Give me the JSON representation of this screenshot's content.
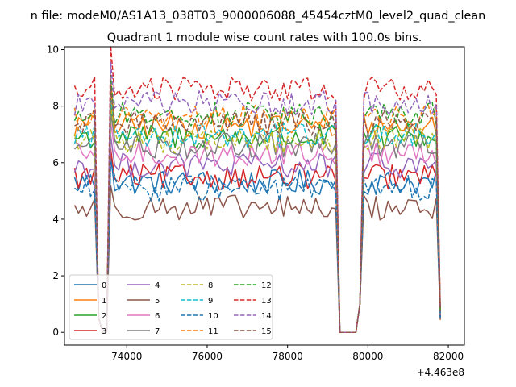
{
  "figure_title": "n file: modeM0/AS1A13_038T03_9000006088_45454cztM0_level2_quad_clean",
  "chart_data": {
    "type": "line",
    "title": "Quadrant 1 module wise count rates with 100.0s bins.",
    "xlabel": "",
    "ylabel": "",
    "x_offset_label": "+4.463e8",
    "xlim": [
      72450,
      82400
    ],
    "ylim": [
      -0.45,
      10.1
    ],
    "xticks": [
      74000,
      76000,
      78000,
      80000,
      82000
    ],
    "xtick_labels": [
      "74000",
      "76000",
      "78000",
      "80000",
      "82000"
    ],
    "yticks": [
      0,
      2,
      4,
      6,
      8,
      10
    ],
    "ytick_labels": [
      "0",
      "2",
      "4",
      "6",
      "8",
      "10"
    ],
    "x_segments": [
      {
        "start": 72700,
        "end": 73200,
        "step": 100
      },
      {
        "start": 73600,
        "end": 79200,
        "step": 100
      },
      {
        "start": 79900,
        "end": 81800,
        "step": 100
      }
    ],
    "gaps": [
      {
        "from": 73200,
        "to": 73600,
        "via": [
          [
            73300,
            0.5
          ],
          [
            73400,
            0.0
          ],
          [
            73500,
            0.0
          ]
        ]
      },
      {
        "from": 79200,
        "to": 79900,
        "via": [
          [
            79300,
            0.0
          ],
          [
            79400,
            0.0
          ],
          [
            79500,
            0.0
          ],
          [
            79600,
            0.0
          ],
          [
            79700,
            0.0
          ],
          [
            79800,
            1.0
          ]
        ]
      }
    ],
    "final_value_scale": 0.1,
    "series": [
      {
        "name": "0",
        "color": "#1f77b4",
        "dash": "solid",
        "level": 5.3
      },
      {
        "name": "1",
        "color": "#ff7f0e",
        "dash": "solid",
        "level": 7.3
      },
      {
        "name": "2",
        "color": "#2ca02c",
        "dash": "solid",
        "level": 6.9
      },
      {
        "name": "3",
        "color": "#d62728",
        "dash": "solid",
        "level": 5.5
      },
      {
        "name": "4",
        "color": "#9467bd",
        "dash": "solid",
        "level": 5.9
      },
      {
        "name": "5",
        "color": "#8c564b",
        "dash": "solid",
        "level": 4.4
      },
      {
        "name": "6",
        "color": "#e377c2",
        "dash": "solid",
        "level": 6.3
      },
      {
        "name": "7",
        "color": "#7f7f7f",
        "dash": "solid",
        "level": 6.6
      },
      {
        "name": "8",
        "color": "#bcbd22",
        "dash": "dashed",
        "level": 6.8
      },
      {
        "name": "9",
        "color": "#17becf",
        "dash": "dashed",
        "level": 7.0
      },
      {
        "name": "10",
        "color": "#1f77b4",
        "dash": "dashed",
        "level": 5.1
      },
      {
        "name": "11",
        "color": "#ff7f0e",
        "dash": "dashed",
        "level": 7.6
      },
      {
        "name": "12",
        "color": "#2ca02c",
        "dash": "dashed",
        "level": 7.7
      },
      {
        "name": "13",
        "color": "#d62728",
        "dash": "dashed",
        "level": 8.6
      },
      {
        "name": "14",
        "color": "#9467bd",
        "dash": "dashed",
        "level": 8.1
      },
      {
        "name": "15",
        "color": "#8c564b",
        "dash": "dashed",
        "level": 7.4
      }
    ],
    "legend": {
      "location": "lower-left",
      "columns": 4
    }
  }
}
